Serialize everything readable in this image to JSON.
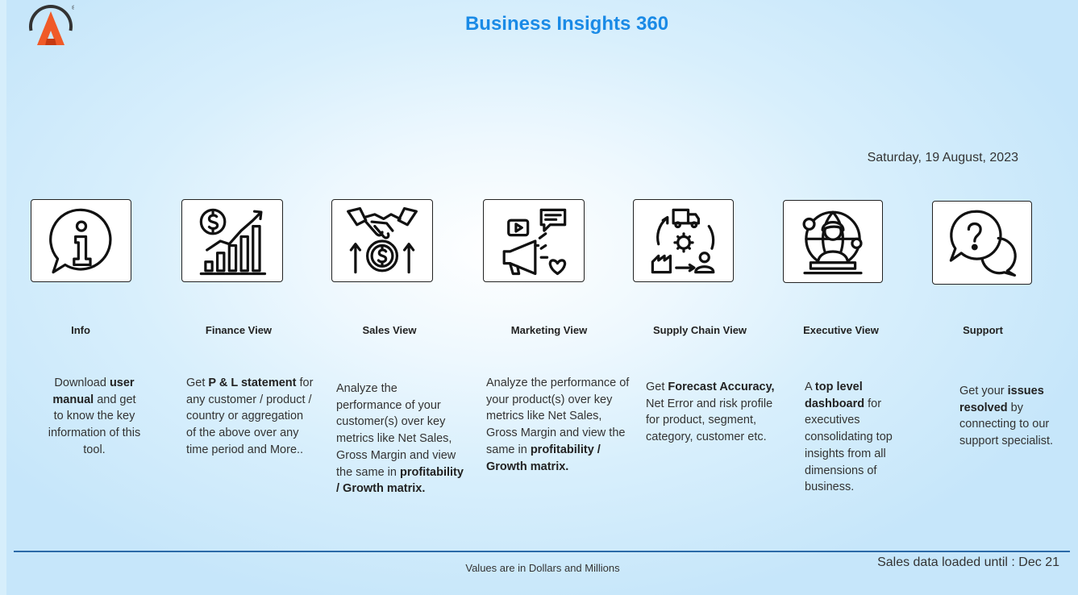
{
  "header": {
    "title": "Business Insights 360",
    "date": "Saturday, 19 August, 2023"
  },
  "colors": {
    "title": "#1a8ae6",
    "logo_orange": "#f05a28",
    "logo_dark": "#333333",
    "divider": "#2b6aa8"
  },
  "nav": [
    {
      "key": "info",
      "label": "Info",
      "icon": "info-chat-icon",
      "desc": [
        {
          "t": "Download "
        },
        {
          "b": "user manual"
        },
        {
          "t": " and get to know the key information of this tool."
        }
      ]
    },
    {
      "key": "finance",
      "label": "Finance View",
      "icon": "finance-growth-chart-icon",
      "desc": [
        {
          "t": "Get  "
        },
        {
          "b": "P & L statement"
        },
        {
          "t": " for any customer / product / country or aggregation of the above over any time period and More.."
        }
      ]
    },
    {
      "key": "sales",
      "label": "Sales View",
      "icon": "handshake-dollar-icon",
      "desc": [
        {
          "t": "Analyze the performance of your customer(s) over key metrics like Net Sales, Gross Margin and view the same in "
        },
        {
          "b": "profitability / Growth matrix."
        }
      ]
    },
    {
      "key": "marketing",
      "label": "Marketing View",
      "icon": "megaphone-icon",
      "desc": [
        {
          "t": "Analyze the performance of your product(s) over key metrics like Net Sales, Gross Margin and view the same in "
        },
        {
          "b": "profitability / Growth matrix."
        }
      ]
    },
    {
      "key": "supply",
      "label": "Supply Chain View",
      "icon": "supply-chain-cycle-icon",
      "desc": [
        {
          "t": "Get "
        },
        {
          "b": "Forecast Accuracy,"
        },
        {
          "t": " Net Error and risk profile for product, segment, category, customer etc."
        }
      ]
    },
    {
      "key": "executive",
      "label": "Executive View",
      "icon": "executive-globe-icon",
      "desc": [
        {
          "t": "A "
        },
        {
          "b": "top level dashboard"
        },
        {
          "t": " for executives consolidating top insights from all dimensions of business."
        }
      ]
    },
    {
      "key": "support",
      "label": "Support",
      "icon": "question-chat-icon",
      "desc": [
        {
          "t": "Get your "
        },
        {
          "b": "issues resolved"
        },
        {
          "t": " by connecting to our support specialist."
        }
      ]
    }
  ],
  "footer": {
    "note": "Values are in Dollars and Millions",
    "loaded": "Sales data loaded until : Dec 21"
  }
}
